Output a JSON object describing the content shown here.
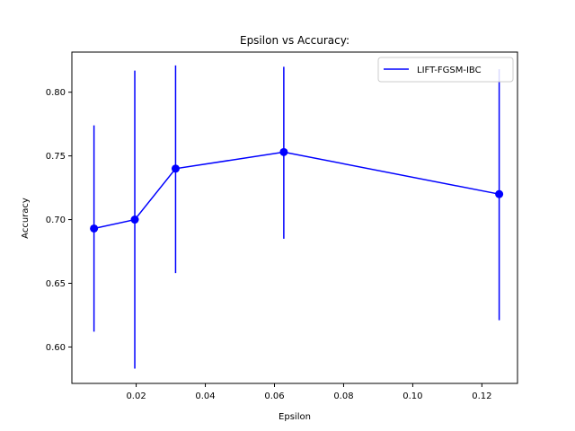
{
  "chart_data": {
    "type": "line",
    "title": "Epsilon vs Accuracy:",
    "xlabel": "Epsilon",
    "ylabel": "Accuracy",
    "xlim": [
      0.0014,
      0.1303
    ],
    "ylim": [
      0.5714,
      0.8315
    ],
    "xticks": [
      0.02,
      0.04,
      0.06,
      0.08,
      0.1,
      0.12
    ],
    "xtick_labels": [
      "0.02",
      "0.04",
      "0.06",
      "0.08",
      "0.10",
      "0.12"
    ],
    "yticks": [
      0.6,
      0.65,
      0.7,
      0.75,
      0.8
    ],
    "ytick_labels": [
      "0.60",
      "0.65",
      "0.70",
      "0.75",
      "0.80"
    ],
    "grid": false,
    "legend_position": "top-right",
    "series": [
      {
        "name": "LIFT-FGSM-IBC",
        "color": "#0000ff",
        "x": [
          0.0078,
          0.0196,
          0.0314,
          0.0627,
          0.125
        ],
        "y": [
          0.693,
          0.7,
          0.74,
          0.753,
          0.72
        ],
        "err_low": [
          0.612,
          0.583,
          0.658,
          0.685,
          0.621
        ],
        "err_high": [
          0.774,
          0.817,
          0.821,
          0.82,
          0.818
        ]
      }
    ]
  }
}
